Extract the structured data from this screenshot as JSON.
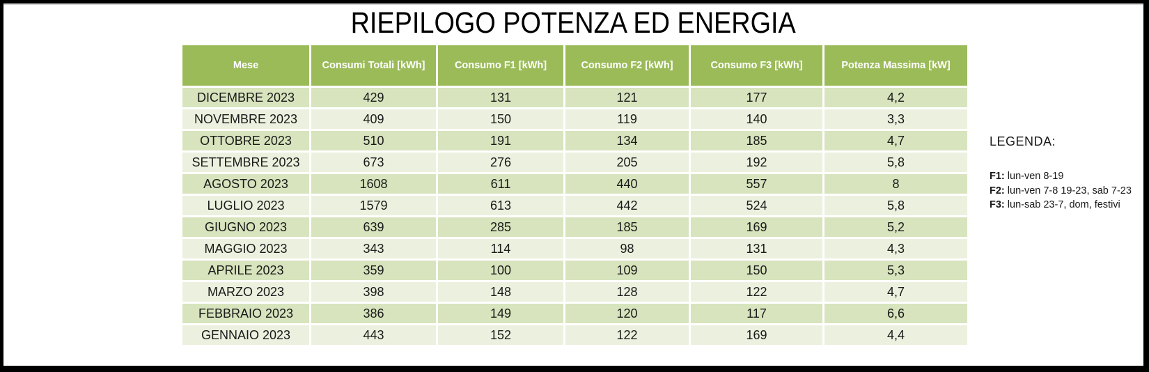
{
  "title": "RIEPILOGO POTENZA ED ENERGIA",
  "table": {
    "columns": [
      "Mese",
      "Consumi Totali [kWh]",
      "Consumo F1 [kWh]",
      "Consumo F2 [kWh]",
      "Consumo F3 [kWh]",
      "Potenza Massima [kW]"
    ],
    "rows": [
      [
        "DICEMBRE 2023",
        "429",
        "131",
        "121",
        "177",
        "4,2"
      ],
      [
        "NOVEMBRE 2023",
        "409",
        "150",
        "119",
        "140",
        "3,3"
      ],
      [
        "OTTOBRE 2023",
        "510",
        "191",
        "134",
        "185",
        "4,7"
      ],
      [
        "SETTEMBRE 2023",
        "673",
        "276",
        "205",
        "192",
        "5,8"
      ],
      [
        "AGOSTO 2023",
        "1608",
        "611",
        "440",
        "557",
        "8"
      ],
      [
        "LUGLIO 2023",
        "1579",
        "613",
        "442",
        "524",
        "5,8"
      ],
      [
        "GIUGNO 2023",
        "639",
        "285",
        "185",
        "169",
        "5,2"
      ],
      [
        "MAGGIO 2023",
        "343",
        "114",
        "98",
        "131",
        "4,3"
      ],
      [
        "APRILE 2023",
        "359",
        "100",
        "109",
        "150",
        "5,3"
      ],
      [
        "MARZO 2023",
        "398",
        "148",
        "128",
        "122",
        "4,7"
      ],
      [
        "FEBBRAIO 2023",
        "386",
        "149",
        "120",
        "117",
        "6,6"
      ],
      [
        "GENNAIO 2023",
        "443",
        "152",
        "122",
        "169",
        "4,4"
      ]
    ]
  },
  "legend": {
    "title": "LEGENDA:",
    "items": [
      {
        "label": "F1:",
        "text": "lun-ven 8-19"
      },
      {
        "label": "F2:",
        "text": "lun-ven 7-8 19-23, sab 7-23"
      },
      {
        "label": "F3:",
        "text": "lun-sab 23-7, dom, festivi"
      }
    ]
  },
  "colors": {
    "header_bg": "#9BBB59",
    "row_dark": "#D7E4BD",
    "row_light": "#EBF1DE",
    "header_text": "#FFFFFF",
    "body_text": "#1A1A1A",
    "frame": "#000000"
  }
}
